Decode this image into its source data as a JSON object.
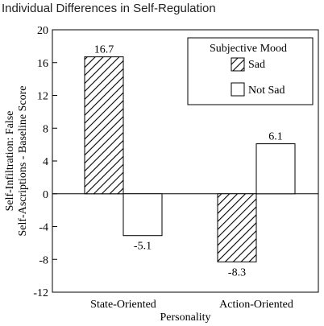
{
  "chart_data": {
    "type": "bar",
    "title": "Individual Differences in Self-Regulation",
    "xlabel": "Personality",
    "ylabel_lines": [
      "Self-Infiltration: False",
      "Self-Ascriptions - Baseline Score"
    ],
    "categories": [
      "State-Oriented",
      "Action-Oriented"
    ],
    "series": [
      {
        "name": "Sad",
        "pattern": "hatched",
        "values": [
          16.7,
          -8.3
        ],
        "labels": [
          "16.7",
          "-8.3"
        ]
      },
      {
        "name": "Not Sad",
        "pattern": "plain",
        "values": [
          -5.1,
          6.1
        ],
        "labels": [
          "-5.1",
          "6.1"
        ]
      }
    ],
    "legend": {
      "title": "Subjective Mood",
      "position": "top-right"
    },
    "ylim": [
      -12,
      20
    ],
    "yticks": [
      20,
      16,
      12,
      8,
      4,
      0,
      -4,
      -8,
      -12
    ],
    "ytick_labels": [
      "20",
      "16",
      "12",
      "8",
      "4",
      "0",
      "-4",
      "-8",
      "-12"
    ],
    "grid": false,
    "colors": {
      "bar_stroke": "#000000",
      "bar_fill": "#ffffff",
      "hatch": "#000000"
    }
  }
}
